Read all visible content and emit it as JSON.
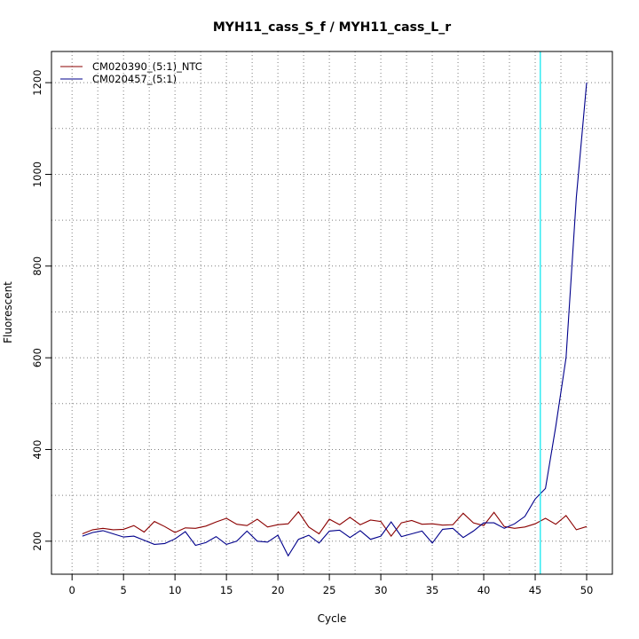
{
  "chart_data": {
    "type": "line",
    "title": "MYH11_cass_S_f / MYH11_cass_L_r",
    "xlabel": "Cycle",
    "ylabel": "Fluorescent",
    "xlim": [
      -2,
      52.5
    ],
    "ylim": [
      128,
      1268
    ],
    "x_ticks": [
      0,
      5,
      10,
      15,
      20,
      25,
      30,
      35,
      40,
      45,
      50
    ],
    "y_ticks": [
      200,
      400,
      600,
      800,
      1000,
      1200
    ],
    "grid": true,
    "legend_position": "top-left",
    "threshold_line": {
      "x": 45.5,
      "color": "#00e5ee"
    },
    "x": [
      1,
      2,
      3,
      4,
      5,
      6,
      7,
      8,
      9,
      10,
      11,
      12,
      13,
      14,
      15,
      16,
      17,
      18,
      19,
      20,
      21,
      22,
      23,
      24,
      25,
      26,
      27,
      28,
      29,
      30,
      31,
      32,
      33,
      34,
      35,
      36,
      37,
      38,
      39,
      40,
      41,
      42,
      43,
      44,
      45,
      46,
      47,
      48,
      49,
      50
    ],
    "series": [
      {
        "name": "CM020390_(5:1)_NTC",
        "color": "#8b0000",
        "values": [
          216,
          225,
          228,
          225,
          226,
          234,
          220,
          243,
          232,
          219,
          229,
          228,
          233,
          242,
          250,
          237,
          234,
          248,
          231,
          236,
          238,
          264,
          231,
          216,
          248,
          236,
          252,
          236,
          246,
          243,
          211,
          240,
          245,
          237,
          238,
          235,
          236,
          261,
          240,
          234,
          263,
          232,
          228,
          231,
          238,
          250,
          237,
          256,
          225,
          232
        ]
      },
      {
        "name": "CM020457_(5:1)",
        "color": "#00008b",
        "values": [
          211,
          219,
          223,
          216,
          209,
          211,
          202,
          193,
          195,
          205,
          221,
          191,
          197,
          210,
          193,
          200,
          222,
          200,
          198,
          213,
          168,
          204,
          213,
          196,
          222,
          224,
          208,
          223,
          204,
          211,
          242,
          210,
          216,
          222,
          196,
          226,
          228,
          208,
          222,
          240,
          240,
          228,
          238,
          254,
          292,
          315,
          450,
          600,
          950,
          1200
        ]
      }
    ]
  }
}
